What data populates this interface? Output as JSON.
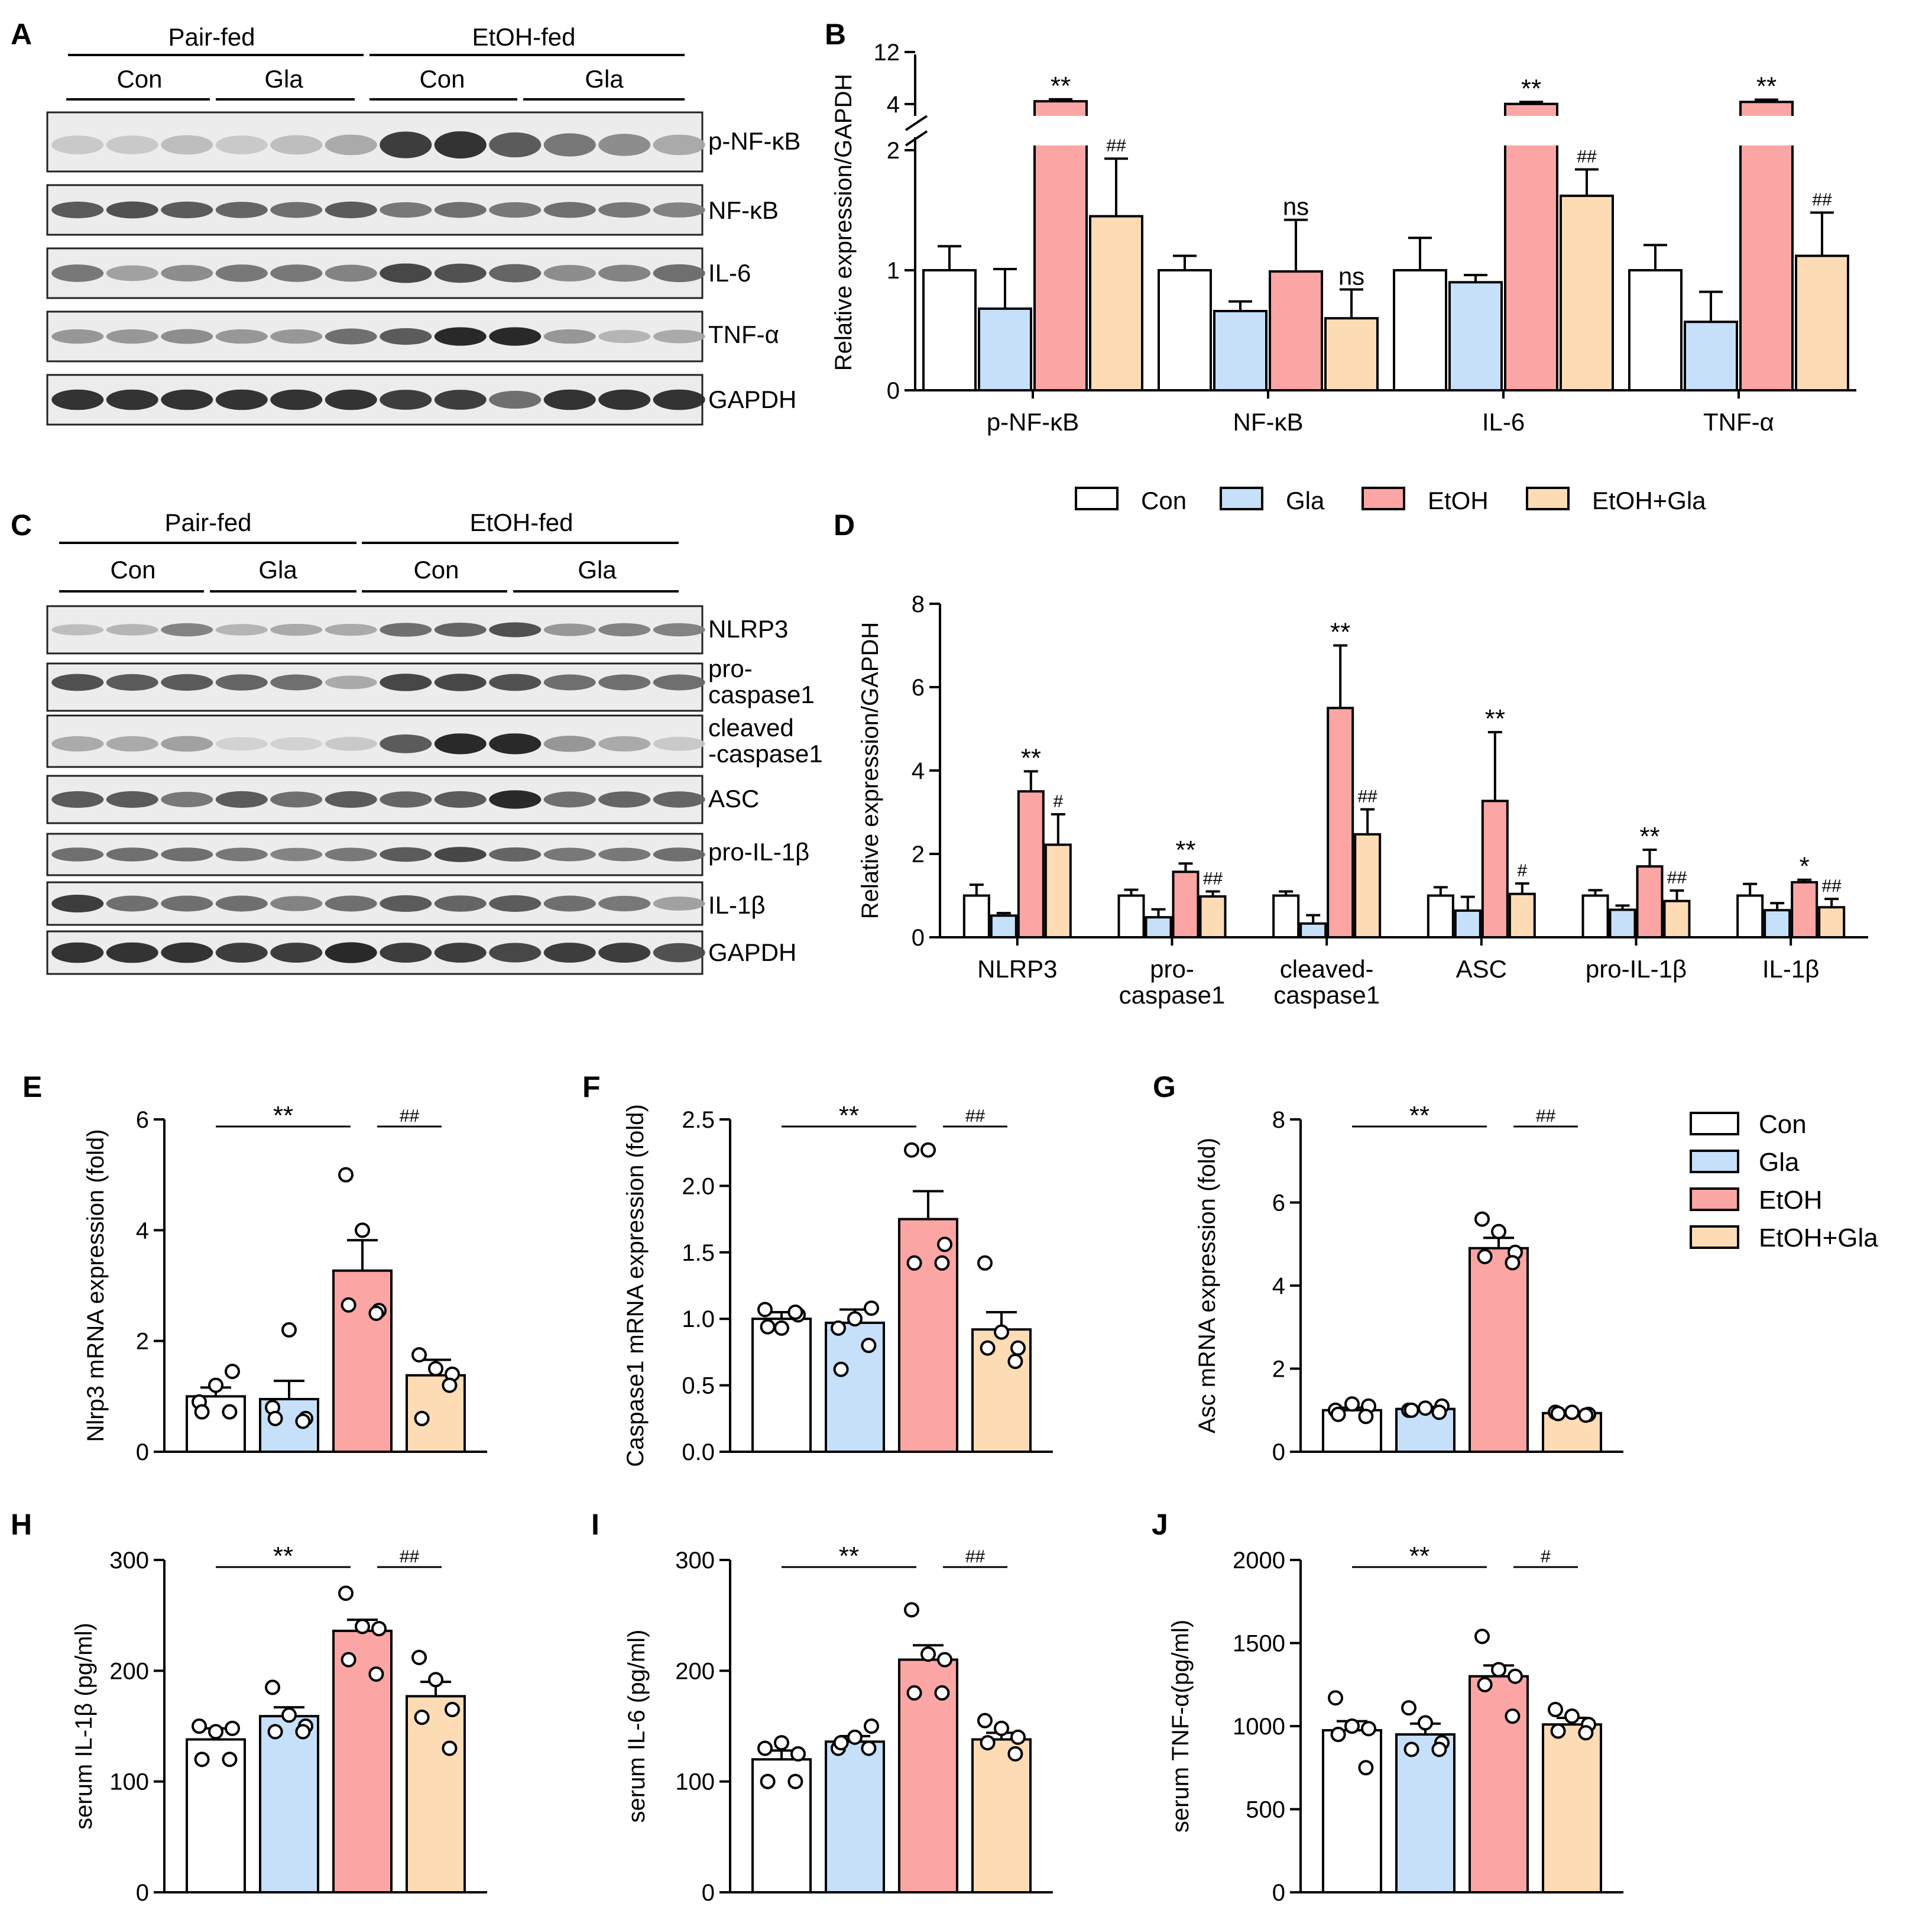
{
  "colors": {
    "Con": "#ffffff",
    "Gla": "#c6e0fa",
    "EtOH": "#fca5a5",
    "EtOH+Gla": "#fddcb5",
    "stroke": "#000000"
  },
  "legend": [
    "Con",
    "Gla",
    "EtOH",
    "EtOH+Gla"
  ],
  "panels": {
    "A": {
      "label": "A",
      "header_groups": [
        "Pair-fed",
        "EtOH-fed"
      ],
      "header_subgroups": [
        "Con",
        "Gla",
        "Con",
        "Gla"
      ],
      "bands": [
        "p-NF-κB",
        "NF-κB",
        "IL-6",
        "TNF-α",
        "GAPDH"
      ],
      "lanes": 12
    },
    "C": {
      "label": "C",
      "header_groups": [
        "Pair-fed",
        "EtOH-fed"
      ],
      "header_subgroups": [
        "Con",
        "Gla",
        "Con",
        "Gla"
      ],
      "bands": [
        "NLRP3",
        "pro-\ncaspase1",
        "cleaved\n-caspase1",
        "ASC",
        "pro-IL-1β",
        "IL-1β",
        "GAPDH"
      ],
      "lanes": 12
    }
  },
  "chart_data": [
    {
      "panel": "B",
      "type": "bar",
      "ylabel": "Relative expression/GAPDH",
      "axis_break": {
        "lower": [
          0,
          2
        ],
        "upper": [
          4,
          12
        ]
      },
      "yticks": [
        "0",
        "1",
        "2",
        "4",
        "12"
      ],
      "categories": [
        "p-NF-κB",
        "NF-κB",
        "IL-6",
        "TNF-α"
      ],
      "series": [
        {
          "name": "Con",
          "values": [
            1.0,
            1.0,
            1.0,
            1.0
          ],
          "errors": [
            0.2,
            0.12,
            0.27,
            0.21
          ]
        },
        {
          "name": "Gla",
          "values": [
            0.68,
            0.66,
            0.9,
            0.57
          ],
          "errors": [
            0.33,
            0.08,
            0.06,
            0.25
          ]
        },
        {
          "name": "EtOH",
          "values": [
            4.6,
            0.99,
            4.2,
            4.5
          ],
          "errors": [
            0.3,
            0.43,
            0.3,
            0.35
          ]
        },
        {
          "name": "EtOH+Gla",
          "values": [
            1.45,
            0.6,
            1.62,
            1.12
          ],
          "errors": [
            0.48,
            0.24,
            0.22,
            0.36
          ]
        }
      ],
      "annotations": [
        {
          "category": 0,
          "series": 2,
          "text": "**"
        },
        {
          "category": 0,
          "series": 3,
          "text": "##"
        },
        {
          "category": 1,
          "series": 2,
          "text": "ns"
        },
        {
          "category": 1,
          "series": 3,
          "text": "ns"
        },
        {
          "category": 2,
          "series": 2,
          "text": "**"
        },
        {
          "category": 2,
          "series": 3,
          "text": "##"
        },
        {
          "category": 3,
          "series": 2,
          "text": "**"
        },
        {
          "category": 3,
          "series": 3,
          "text": "##"
        }
      ]
    },
    {
      "panel": "D",
      "type": "bar",
      "ylabel": "Relative expression/GAPDH",
      "ylim": [
        0,
        8
      ],
      "yticks": [
        0,
        2,
        4,
        6,
        8
      ],
      "categories": [
        "NLRP3",
        "pro-\ncaspase1",
        "cleaved-\ncaspase1",
        "ASC",
        "pro-IL-1β",
        "IL-1β"
      ],
      "series": [
        {
          "name": "Con",
          "values": [
            1.0,
            1.0,
            1.0,
            1.0,
            1.0,
            1.0
          ],
          "errors": [
            0.26,
            0.14,
            0.1,
            0.2,
            0.13,
            0.28
          ]
        },
        {
          "name": "Gla",
          "values": [
            0.52,
            0.48,
            0.33,
            0.64,
            0.66,
            0.65
          ],
          "errors": [
            0.06,
            0.19,
            0.2,
            0.33,
            0.1,
            0.17
          ]
        },
        {
          "name": "EtOH",
          "values": [
            3.5,
            1.57,
            5.5,
            3.27,
            1.7,
            1.32
          ],
          "errors": [
            0.48,
            0.2,
            1.5,
            1.65,
            0.4,
            0.06
          ]
        },
        {
          "name": "EtOH+Gla",
          "values": [
            2.22,
            0.98,
            2.47,
            1.04,
            0.87,
            0.72
          ],
          "errors": [
            0.73,
            0.12,
            0.6,
            0.25,
            0.25,
            0.2
          ]
        }
      ],
      "annotations": [
        {
          "category": 0,
          "series": 2,
          "text": "**"
        },
        {
          "category": 0,
          "series": 3,
          "text": "#"
        },
        {
          "category": 1,
          "series": 2,
          "text": "**"
        },
        {
          "category": 1,
          "series": 3,
          "text": "##"
        },
        {
          "category": 2,
          "series": 2,
          "text": "**"
        },
        {
          "category": 2,
          "series": 3,
          "text": "##"
        },
        {
          "category": 3,
          "series": 2,
          "text": "**"
        },
        {
          "category": 3,
          "series": 3,
          "text": "#"
        },
        {
          "category": 4,
          "series": 2,
          "text": "**"
        },
        {
          "category": 4,
          "series": 3,
          "text": "##"
        },
        {
          "category": 5,
          "series": 2,
          "text": "*"
        },
        {
          "category": 5,
          "series": 3,
          "text": "##"
        }
      ]
    },
    {
      "panel": "E",
      "type": "bar",
      "ylabel": "Nlrp3 mRNA expression (fold)",
      "ylim": [
        0,
        6
      ],
      "yticks": [
        "0",
        "2",
        "4",
        "6"
      ],
      "groups": [
        "Con",
        "Gla",
        "EtOH",
        "EtOH+Gla"
      ],
      "values": [
        1.0,
        0.95,
        3.27,
        1.38
      ],
      "errors": [
        0.16,
        0.33,
        0.55,
        0.28
      ],
      "points": [
        [
          0.9,
          1.2,
          1.45,
          0.72,
          0.72
        ],
        [
          0.8,
          2.2,
          0.6,
          0.6,
          0.55
        ],
        [
          5.0,
          4.0,
          2.55,
          2.65,
          2.5
        ],
        [
          1.75,
          1.5,
          1.4,
          0.6,
          1.2
        ]
      ],
      "sig": [
        {
          "from": 0,
          "to": 2,
          "text": "**"
        },
        {
          "from": 2,
          "to": 3,
          "text": "##"
        }
      ]
    },
    {
      "panel": "F",
      "type": "bar",
      "ylabel": "Caspase1 mRNA expression (fold)",
      "ylim": [
        0,
        2.5
      ],
      "yticks": [
        "0.0",
        "0.5",
        "1.0",
        "1.5",
        "2.0",
        "2.5"
      ],
      "groups": [
        "Con",
        "Gla",
        "EtOH",
        "EtOH+Gla"
      ],
      "values": [
        1.0,
        0.97,
        1.75,
        0.92
      ],
      "errors": [
        0.05,
        0.1,
        0.21,
        0.13
      ],
      "points": [
        [
          1.07,
          0.93,
          1.03,
          0.94,
          1.05
        ],
        [
          0.93,
          1.0,
          1.08,
          0.62,
          0.8
        ],
        [
          2.27,
          2.27,
          1.56,
          1.42,
          1.42
        ],
        [
          1.42,
          0.9,
          0.78,
          0.78,
          0.68
        ]
      ],
      "sig": [
        {
          "from": 0,
          "to": 2,
          "text": "**"
        },
        {
          "from": 2,
          "to": 3,
          "text": "##"
        }
      ]
    },
    {
      "panel": "G",
      "type": "bar",
      "ylabel": "Asc mRNA expression (fold)",
      "ylim": [
        0,
        8
      ],
      "yticks": [
        "0",
        "2",
        "4",
        "6",
        "8"
      ],
      "groups": [
        "Con",
        "Gla",
        "EtOH",
        "EtOH+Gla"
      ],
      "values": [
        1.0,
        1.03,
        4.9,
        0.93
      ],
      "errors": [
        0.06,
        0.05,
        0.25,
        0.04
      ],
      "points": [
        [
          1.0,
          1.15,
          1.1,
          0.9,
          0.85
        ],
        [
          1.0,
          1.05,
          1.1,
          1.0,
          0.95
        ],
        [
          5.6,
          5.3,
          4.8,
          4.7,
          4.55
        ],
        [
          0.95,
          0.95,
          0.9,
          0.92,
          0.88
        ]
      ],
      "sig": [
        {
          "from": 0,
          "to": 2,
          "text": "**"
        },
        {
          "from": 2,
          "to": 3,
          "text": "##"
        }
      ]
    },
    {
      "panel": "H",
      "type": "bar",
      "ylabel": "serum IL-1β (pg/ml)",
      "ylim": [
        0,
        300
      ],
      "yticks": [
        "0",
        "100",
        "200",
        "300"
      ],
      "groups": [
        "Con",
        "Gla",
        "EtOH",
        "EtOH+Gla"
      ],
      "values": [
        138,
        159,
        236,
        177
      ],
      "errors": [
        10,
        8,
        10,
        13
      ],
      "points": [
        [
          150,
          145,
          148,
          120,
          120
        ],
        [
          185,
          160,
          150,
          145,
          145
        ],
        [
          270,
          240,
          238,
          210,
          197
        ],
        [
          212,
          192,
          165,
          158,
          130
        ]
      ],
      "sig": [
        {
          "from": 0,
          "to": 2,
          "text": "**"
        },
        {
          "from": 2,
          "to": 3,
          "text": "##"
        }
      ]
    },
    {
      "panel": "I",
      "type": "bar",
      "ylabel": "serum IL-6 (pg/ml)",
      "ylim": [
        0,
        300
      ],
      "yticks": [
        "0",
        "100",
        "200",
        "300"
      ],
      "groups": [
        "Con",
        "Gla",
        "EtOH",
        "EtOH+Gla"
      ],
      "values": [
        120,
        136,
        210,
        138
      ],
      "errors": [
        8,
        5,
        13,
        6
      ],
      "points": [
        [
          130,
          135,
          125,
          100,
          100
        ],
        [
          130,
          140,
          150,
          135,
          130
        ],
        [
          255,
          215,
          210,
          180,
          180
        ],
        [
          155,
          148,
          140,
          135,
          125
        ]
      ],
      "sig": [
        {
          "from": 0,
          "to": 2,
          "text": "**"
        },
        {
          "from": 2,
          "to": 3,
          "text": "##"
        }
      ]
    },
    {
      "panel": "J",
      "type": "bar",
      "ylabel": "serum TNF-α(pg/ml)",
      "ylim": [
        0,
        2000
      ],
      "yticks": [
        "0",
        "500",
        "1000",
        "1500",
        "2000"
      ],
      "groups": [
        "Con",
        "Gla",
        "EtOH",
        "EtOH+Gla"
      ],
      "values": [
        975,
        950,
        1300,
        1010
      ],
      "errors": [
        55,
        65,
        65,
        40
      ],
      "points": [
        [
          1170,
          1000,
          985,
          950,
          750
        ],
        [
          1110,
          1020,
          900,
          860,
          860
        ],
        [
          1540,
          1340,
          1300,
          1250,
          1060
        ],
        [
          1100,
          1060,
          1010,
          970,
          960
        ]
      ],
      "sig": [
        {
          "from": 0,
          "to": 2,
          "text": "**"
        },
        {
          "from": 2,
          "to": 3,
          "text": "#"
        }
      ]
    }
  ]
}
